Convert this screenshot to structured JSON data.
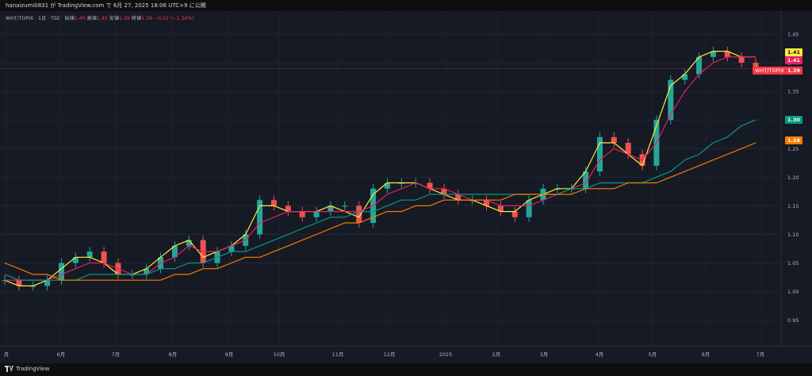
{
  "header": {
    "publish_line": "hanaizumi0831 が TradingView.com で 6月 27, 2025 18:06 UTC+9 に公開"
  },
  "legend": {
    "symbol_line": "WHT/TOPIX · 1日 · TSE",
    "open_label": "始値",
    "open_value": "1.40",
    "high_label": "高値",
    "high_value": "1.40",
    "low_label": "安値",
    "low_value": "1.39",
    "close_label": "終値",
    "close_value": "1.39",
    "change_value": "−0.02 (−1.34%)"
  },
  "price_tags": {
    "ma_yellow": "1.41",
    "ma_pink": "1.41",
    "symbol_name": "WHT/TOPIX",
    "last_price": "1.39",
    "ma_teal": "1.30",
    "ma_orange": "1.26"
  },
  "footer": {
    "brand": "TradingView"
  },
  "colors": {
    "up": "#26a69a",
    "down": "#ef5350",
    "ma_yellow": "#ffeb3b",
    "ma_pink": "#e91e63",
    "ma_teal": "#089981",
    "ma_orange": "#f57c00",
    "last_price": "#f23645"
  },
  "chart_data": {
    "type": "candlestick",
    "y_ticks": [
      "1.45",
      "1.40",
      "1.35",
      "1.30",
      "1.25",
      "1.20",
      "1.15",
      "1.10",
      "1.05",
      "1.00",
      "0.95"
    ],
    "ylim": [
      0.95,
      1.45
    ],
    "x_ticks": [
      "月",
      "6月",
      "7月",
      "8月",
      "9月",
      "10月",
      "11月",
      "12月",
      "2025",
      "2月",
      "3月",
      "4月",
      "5月",
      "6月",
      "7月"
    ],
    "series": [
      {
        "name": "WHT/TOPIX",
        "key": "close",
        "values": [
          1.02,
          1.01,
          1.01,
          1.02,
          1.05,
          1.06,
          1.07,
          1.05,
          1.03,
          1.03,
          1.04,
          1.06,
          1.08,
          1.09,
          1.05,
          1.07,
          1.08,
          1.1,
          1.16,
          1.15,
          1.14,
          1.13,
          1.14,
          1.15,
          1.15,
          1.12,
          1.18,
          1.19,
          1.19,
          1.19,
          1.18,
          1.17,
          1.16,
          1.16,
          1.15,
          1.14,
          1.13,
          1.16,
          1.18,
          1.18,
          1.18,
          1.21,
          1.27,
          1.26,
          1.24,
          1.22,
          1.3,
          1.37,
          1.38,
          1.41,
          1.42,
          1.41,
          1.4,
          1.39
        ]
      },
      {
        "name": "",
        "key": "ma_yellow",
        "values": [
          1.02,
          1.01,
          1.01,
          1.02,
          1.04,
          1.06,
          1.06,
          1.05,
          1.03,
          1.03,
          1.04,
          1.06,
          1.08,
          1.09,
          1.06,
          1.07,
          1.08,
          1.1,
          1.15,
          1.15,
          1.14,
          1.14,
          1.14,
          1.15,
          1.14,
          1.13,
          1.17,
          1.19,
          1.19,
          1.19,
          1.18,
          1.17,
          1.16,
          1.16,
          1.15,
          1.14,
          1.14,
          1.16,
          1.17,
          1.18,
          1.18,
          1.21,
          1.26,
          1.26,
          1.24,
          1.22,
          1.29,
          1.36,
          1.38,
          1.41,
          1.42,
          1.42,
          1.41,
          1.41
        ]
      },
      {
        "name": "",
        "key": "ma_pink",
        "values": [
          1.02,
          1.02,
          1.02,
          1.02,
          1.03,
          1.04,
          1.05,
          1.05,
          1.04,
          1.03,
          1.03,
          1.05,
          1.06,
          1.08,
          1.07,
          1.07,
          1.08,
          1.09,
          1.12,
          1.13,
          1.14,
          1.14,
          1.14,
          1.14,
          1.14,
          1.14,
          1.15,
          1.17,
          1.18,
          1.19,
          1.18,
          1.18,
          1.17,
          1.16,
          1.16,
          1.15,
          1.15,
          1.15,
          1.16,
          1.17,
          1.18,
          1.19,
          1.23,
          1.25,
          1.24,
          1.23,
          1.26,
          1.31,
          1.35,
          1.38,
          1.4,
          1.41,
          1.41,
          1.41
        ]
      },
      {
        "name": "",
        "key": "ma_teal",
        "values": [
          1.03,
          1.02,
          1.02,
          1.02,
          1.02,
          1.02,
          1.03,
          1.03,
          1.03,
          1.03,
          1.03,
          1.04,
          1.04,
          1.05,
          1.05,
          1.06,
          1.07,
          1.07,
          1.08,
          1.09,
          1.1,
          1.11,
          1.12,
          1.13,
          1.13,
          1.14,
          1.14,
          1.15,
          1.16,
          1.16,
          1.17,
          1.17,
          1.17,
          1.17,
          1.17,
          1.17,
          1.17,
          1.17,
          1.17,
          1.17,
          1.18,
          1.18,
          1.19,
          1.19,
          1.19,
          1.19,
          1.2,
          1.21,
          1.23,
          1.24,
          1.26,
          1.27,
          1.29,
          1.3
        ]
      },
      {
        "name": "",
        "key": "ma_orange",
        "values": [
          1.05,
          1.04,
          1.03,
          1.03,
          1.02,
          1.02,
          1.02,
          1.02,
          1.02,
          1.02,
          1.02,
          1.02,
          1.03,
          1.03,
          1.04,
          1.04,
          1.05,
          1.06,
          1.06,
          1.07,
          1.08,
          1.09,
          1.1,
          1.11,
          1.12,
          1.12,
          1.13,
          1.14,
          1.14,
          1.15,
          1.15,
          1.16,
          1.16,
          1.16,
          1.16,
          1.16,
          1.17,
          1.17,
          1.17,
          1.17,
          1.17,
          1.18,
          1.18,
          1.18,
          1.19,
          1.19,
          1.19,
          1.2,
          1.21,
          1.22,
          1.23,
          1.24,
          1.25,
          1.26
        ]
      }
    ]
  }
}
